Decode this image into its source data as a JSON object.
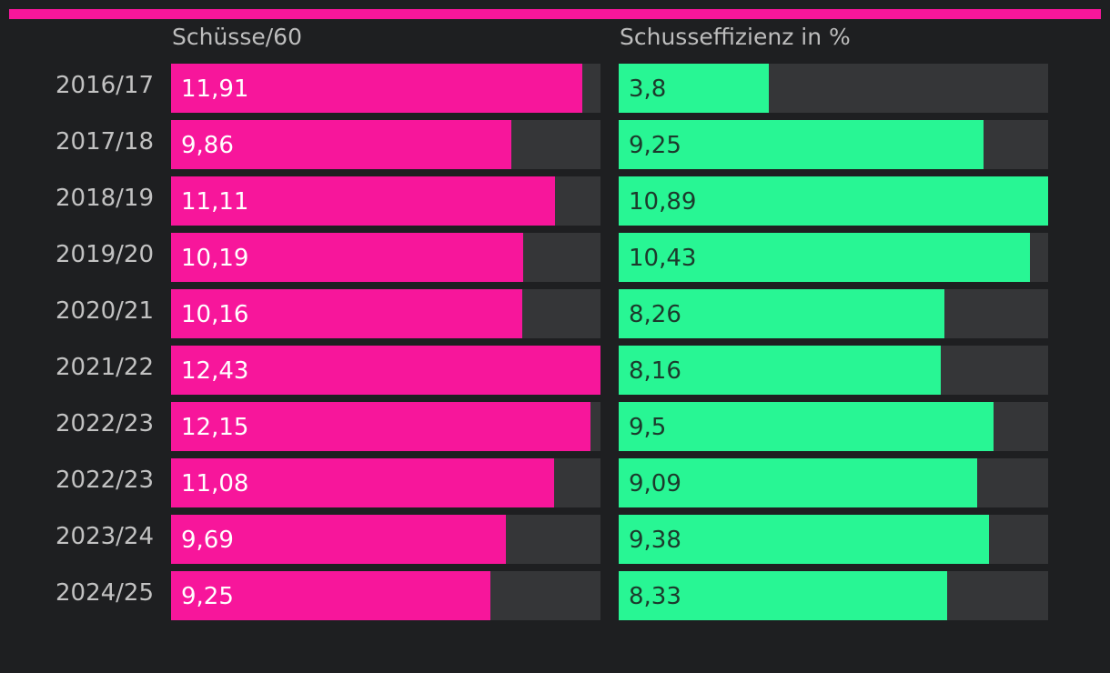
{
  "colors": {
    "background": "#1e1f21",
    "accent_bar": "#f7169b",
    "shots_fill": "#f7169b",
    "efficiency_fill": "#28f694",
    "track": "#353638",
    "shots_text": "#ffffff",
    "efficiency_text": "#1c3a2c"
  },
  "chart_data": {
    "type": "bar",
    "orientation": "horizontal",
    "categories": [
      "2016/17",
      "2017/18",
      "2018/19",
      "2019/20",
      "2020/21",
      "2021/22",
      "2022/23",
      "2022/23",
      "2023/24",
      "2024/25"
    ],
    "series": [
      {
        "name": "Schüsse/60",
        "values": [
          11.91,
          9.86,
          11.11,
          10.19,
          10.16,
          12.43,
          12.15,
          11.08,
          9.69,
          9.25
        ],
        "labels": [
          "11,91",
          "9,86",
          "11,11",
          "10,19",
          "10,16",
          "12,43",
          "12,15",
          "11,08",
          "9,69",
          "9,25"
        ],
        "xlim": [
          0,
          12.43
        ]
      },
      {
        "name": "Schusseffizienz in %",
        "values": [
          3.8,
          9.25,
          10.89,
          10.43,
          8.26,
          8.16,
          9.5,
          9.09,
          9.38,
          8.33
        ],
        "labels": [
          "3,8",
          "9,25",
          "10,89",
          "10,43",
          "8,26",
          "8,16",
          "9,5",
          "9,09",
          "9,38",
          "8,33"
        ],
        "xlim": [
          0,
          10.89
        ]
      }
    ]
  }
}
